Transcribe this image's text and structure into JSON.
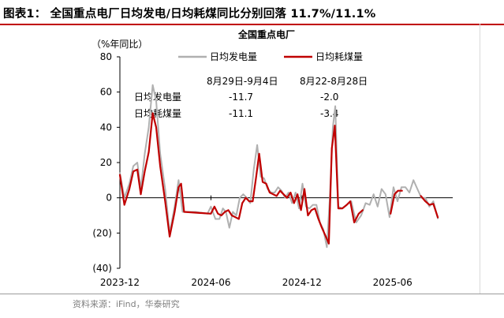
{
  "figure_title": "图表1： 全国重点电厂日均发电/日均耗煤同比分别回落 11.7%/11.1%",
  "source": "资料来源：iFind，华泰研究",
  "colors": {
    "gen": "#b0b0b0",
    "coal": "#c00000",
    "accent": "#c00000"
  },
  "chart_data": {
    "type": "line",
    "title": "全国重点电厂",
    "yunit": "（%年同比）",
    "xlabel": "",
    "ylabel": "",
    "ylim": [
      -40,
      80
    ],
    "yticks": [
      80,
      60,
      40,
      20,
      0,
      -20,
      -40
    ],
    "ytick_labels": [
      "80",
      "60",
      "40",
      "20",
      "0",
      "(20)",
      "(40)"
    ],
    "x_start": "2023-12",
    "x_end": "2025-09",
    "xticks": [
      "2023-12",
      "2024-06",
      "2024-12",
      "2025-06"
    ],
    "legend_placement": "top-center",
    "annotation": {
      "col1_header": "8月29日-9月4日",
      "col2_header": "8月22-8月28日",
      "rows": [
        {
          "label": "日均发电量",
          "v1": "-11.7",
          "v2": "-2.0"
        },
        {
          "label": "日均耗煤量",
          "v1": "-11.1",
          "v2": "-3.4"
        }
      ]
    },
    "series": [
      {
        "name": "日均发电量",
        "style": "gray",
        "points": [
          [
            "2023-12-01",
            14
          ],
          [
            "2023-12-10",
            0
          ],
          [
            "2023-12-20",
            8
          ],
          [
            "2023-12-28",
            18
          ],
          [
            "2024-01-05",
            20
          ],
          [
            "2024-01-12",
            5
          ],
          [
            "2024-01-20",
            25
          ],
          [
            "2024-01-28",
            40
          ],
          [
            "2024-02-05",
            64
          ],
          [
            "2024-02-12",
            55
          ],
          [
            "2024-02-20",
            25
          ],
          [
            "2024-03-01",
            5
          ],
          [
            "2024-03-10",
            -20
          ],
          [
            "2024-03-20",
            -5
          ],
          [
            "2024-03-28",
            10
          ],
          [
            "2024-04-05",
            -8
          ],
          [
            "2024-05-01",
            -8
          ],
          [
            "2024-05-25",
            -9
          ],
          [
            "2024-06-01",
            -5
          ],
          [
            "2024-06-10",
            -12
          ],
          [
            "2024-06-18",
            -12
          ],
          [
            "2024-06-25",
            -6
          ],
          [
            "2024-07-01",
            -8
          ],
          [
            "2024-07-08",
            -17
          ],
          [
            "2024-07-15",
            -8
          ],
          [
            "2024-07-22",
            -10
          ],
          [
            "2024-07-29",
            0
          ],
          [
            "2024-08-05",
            2
          ],
          [
            "2024-08-12",
            0
          ],
          [
            "2024-08-19",
            -3
          ],
          [
            "2024-08-26",
            16
          ],
          [
            "2024-09-02",
            30
          ],
          [
            "2024-09-09",
            12
          ],
          [
            "2024-09-16",
            11
          ],
          [
            "2024-09-23",
            5
          ],
          [
            "2024-09-30",
            3
          ],
          [
            "2024-10-07",
            3
          ],
          [
            "2024-10-14",
            6
          ],
          [
            "2024-10-21",
            4
          ],
          [
            "2024-10-28",
            0
          ],
          [
            "2024-11-04",
            3
          ],
          [
            "2024-11-11",
            -3
          ],
          [
            "2024-11-18",
            3
          ],
          [
            "2024-11-25",
            -6
          ],
          [
            "2024-12-02",
            8
          ],
          [
            "2024-12-09",
            -5
          ],
          [
            "2024-12-16",
            -6
          ],
          [
            "2024-12-23",
            -4
          ],
          [
            "2024-12-30",
            -4
          ],
          [
            "2025-01-06",
            -14
          ],
          [
            "2025-01-13",
            -18
          ],
          [
            "2025-01-20",
            -28
          ],
          [
            "2025-01-26",
            0
          ],
          [
            "2025-02-01",
            40
          ],
          [
            "2025-02-06",
            52
          ],
          [
            "2025-02-12",
            -5
          ],
          [
            "2025-02-20",
            -6
          ],
          [
            "2025-03-01",
            -4
          ],
          [
            "2025-03-10",
            -2
          ],
          [
            "2025-03-20",
            -14
          ],
          [
            "2025-03-30",
            -10
          ],
          [
            "2025-04-08",
            -3
          ],
          [
            "2025-04-16",
            -4
          ],
          [
            "2025-04-24",
            2
          ],
          [
            "2025-05-02",
            -5
          ],
          [
            "2025-05-10",
            5
          ],
          [
            "2025-05-18",
            2
          ],
          [
            "2025-05-26",
            -11
          ],
          [
            "2025-06-03",
            6
          ],
          [
            "2025-06-11",
            -2
          ],
          [
            "2025-06-19",
            6
          ],
          [
            "2025-06-27",
            6
          ],
          [
            "2025-07-05",
            3
          ],
          [
            "2025-07-13",
            10
          ],
          [
            "2025-07-21",
            5
          ],
          [
            "2025-07-29",
            0
          ],
          [
            "2025-08-06",
            0
          ],
          [
            "2025-08-14",
            -5
          ],
          [
            "2025-08-22",
            -2
          ],
          [
            "2025-08-31",
            -11.7
          ]
        ]
      },
      {
        "name": "日均耗煤量",
        "style": "red",
        "segments": [
          [
            [
              "2023-12-01",
              13
            ],
            [
              "2023-12-10",
              -4
            ],
            [
              "2023-12-20",
              5
            ],
            [
              "2023-12-28",
              15
            ],
            [
              "2024-01-05",
              16
            ],
            [
              "2024-01-12",
              2
            ],
            [
              "2024-01-20",
              15
            ],
            [
              "2024-01-28",
              26
            ],
            [
              "2024-02-05",
              48
            ],
            [
              "2024-02-12",
              40
            ],
            [
              "2024-02-20",
              18
            ],
            [
              "2024-03-01",
              -2
            ],
            [
              "2024-03-10",
              -22
            ],
            [
              "2024-03-20",
              -8
            ],
            [
              "2024-03-28",
              6
            ],
            [
              "2024-04-02",
              8
            ],
            [
              "2024-04-08",
              -8
            ],
            [
              "2024-06-01",
              -9
            ],
            [
              "2024-06-08",
              -5
            ],
            [
              "2024-06-15",
              -9
            ],
            [
              "2024-06-22",
              -10
            ],
            [
              "2024-06-29",
              -8
            ],
            [
              "2024-07-06",
              -7
            ],
            [
              "2024-07-13",
              -10
            ],
            [
              "2024-07-20",
              -11
            ],
            [
              "2024-07-27",
              -12
            ],
            [
              "2024-08-03",
              -3
            ],
            [
              "2024-08-10",
              0
            ],
            [
              "2024-08-17",
              -2
            ],
            [
              "2024-08-24",
              -2
            ],
            [
              "2024-08-31",
              12
            ],
            [
              "2024-09-06",
              25
            ],
            [
              "2024-09-13",
              9
            ],
            [
              "2024-09-20",
              8
            ],
            [
              "2024-09-27",
              3
            ],
            [
              "2024-10-04",
              2
            ],
            [
              "2024-10-11",
              1
            ],
            [
              "2024-10-18",
              4
            ],
            [
              "2024-10-25",
              2
            ],
            [
              "2024-11-01",
              0
            ],
            [
              "2024-11-08",
              3
            ],
            [
              "2024-11-15",
              -3
            ],
            [
              "2024-11-22",
              2
            ],
            [
              "2024-11-29",
              -7
            ],
            [
              "2024-12-06",
              5
            ],
            [
              "2024-12-13",
              -10
            ],
            [
              "2024-12-20",
              -7
            ],
            [
              "2024-12-27",
              -6
            ],
            [
              "2025-01-03",
              -12
            ],
            [
              "2025-01-10",
              -17
            ],
            [
              "2025-01-18",
              -22
            ],
            [
              "2025-01-24",
              -26
            ],
            [
              "2025-01-30",
              28
            ],
            [
              "2025-02-05",
              41
            ],
            [
              "2025-02-12",
              -6
            ],
            [
              "2025-02-20",
              -6
            ],
            [
              "2025-03-01",
              -4
            ],
            [
              "2025-03-08",
              -2
            ],
            [
              "2025-03-16",
              -14
            ],
            [
              "2025-03-25",
              -9
            ],
            [
              "2025-04-02",
              -7
            ]
          ],
          [
            [
              "2025-05-28",
              -9
            ],
            [
              "2025-06-05",
              2
            ],
            [
              "2025-06-12",
              4
            ],
            [
              "2025-06-20",
              4
            ]
          ],
          [
            [
              "2025-07-28",
              1
            ],
            [
              "2025-08-06",
              -2
            ],
            [
              "2025-08-14",
              -4
            ],
            [
              "2025-08-22",
              -3.4
            ],
            [
              "2025-08-31",
              -11.1
            ]
          ]
        ]
      }
    ]
  }
}
